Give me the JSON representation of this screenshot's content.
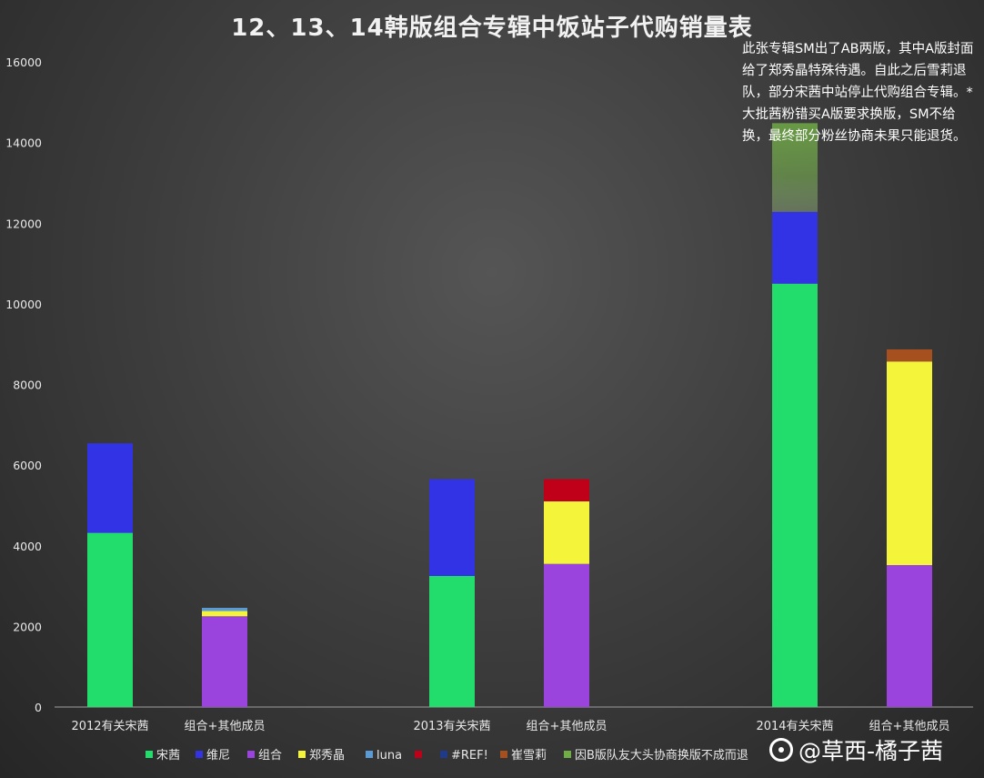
{
  "chart_data": {
    "type": "bar",
    "stacked": true,
    "title": "12、13、14韩版组合专辑中饭站子代购销量表",
    "ylim": [
      0,
      16000
    ],
    "yticks": [
      "0",
      "2000",
      "4000",
      "6000",
      "8000",
      "10000",
      "12000",
      "14000",
      "16000"
    ],
    "grid": false,
    "legend_position": "bottom",
    "categories": [
      "2012有关宋茜",
      "组合+其他成员",
      "2013有关宋茜",
      "组合+其他成员",
      "2014有关宋茜",
      "组合+其他成员"
    ],
    "series": [
      {
        "name": "宋茜",
        "color": "#22dd6c",
        "values": [
          4320,
          0,
          3250,
          0,
          10500,
          0
        ]
      },
      {
        "name": "维尼",
        "color": "#3333e6",
        "values": [
          2220,
          0,
          2400,
          0,
          1780,
          0
        ]
      },
      {
        "name": "组合",
        "color": "#9a44dd",
        "values": [
          0,
          2250,
          0,
          3550,
          0,
          3520
        ]
      },
      {
        "name": "郑秀晶",
        "color": "#f4f43a",
        "values": [
          0,
          130,
          0,
          1550,
          0,
          5050
        ]
      },
      {
        "name": "luna",
        "color": "#5b9bd5",
        "values": [
          0,
          80,
          0,
          0,
          0,
          0
        ]
      },
      {
        "name": "",
        "color": "#c00018",
        "values": [
          0,
          0,
          0,
          550,
          0,
          0
        ]
      },
      {
        "name": "#REF!",
        "color": "#1f3a8a",
        "values": [
          0,
          0,
          0,
          0,
          0,
          0
        ]
      },
      {
        "name": "崔雪莉",
        "color": "#a5501e",
        "values": [
          0,
          0,
          0,
          0,
          0,
          300
        ]
      },
      {
        "name": "因B版队友大头协商换版不成而退",
        "color": "#70ad47",
        "values": [
          0,
          0,
          0,
          0,
          2200,
          0
        ]
      }
    ],
    "annotation": "此张专辑SM出了AB两版，其中A版封面给了郑秀晶特殊待遇。自此之后雪莉退队，部分宋茜中站停止代购组合专辑。*大批茜粉错买A版要求换版，SM不给换，最终部分粉丝协商未果只能退货。"
  },
  "legend_labels": [
    "宋茜",
    "维尼",
    "组合",
    "郑秀晶",
    "luna",
    "",
    "#REF!",
    "崔雪莉",
    "因B版队友大头协商换版不成而退"
  ],
  "watermark": "@草西-橘子茜"
}
